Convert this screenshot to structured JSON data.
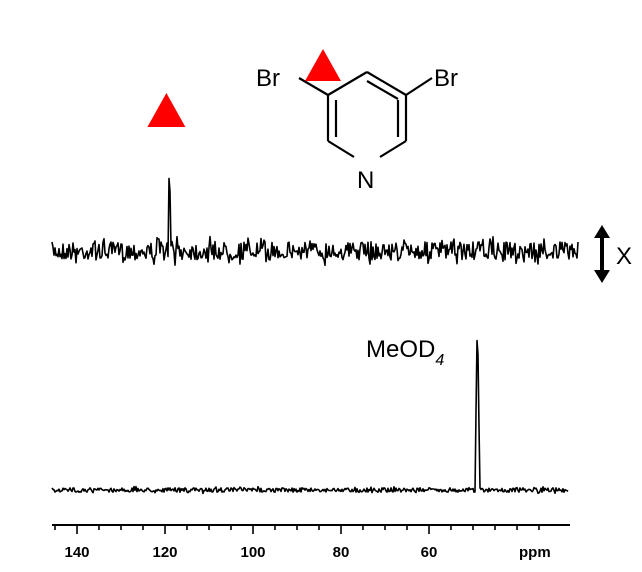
{
  "chart_data": {
    "type": "line",
    "xlabel": "ppm",
    "x_axis": {
      "range": [
        148,
        31
      ],
      "reversed": true,
      "ticks": [
        140,
        120,
        100,
        80,
        60
      ],
      "tick_labels": [
        "140",
        "120",
        "100",
        "80",
        "60"
      ]
    },
    "series": [
      {
        "peaks": [
          {
            "x": 119.0,
            "height": 1.0,
            "marker": "red-triangle"
          }
        ],
        "noise": "high"
      },
      {
        "peaks": [
          {
            "x": 49.0,
            "height": 1.0,
            "label": "MeOD",
            "label_subscript": "4"
          }
        ],
        "noise": "low"
      }
    ],
    "scale_bar_label": "X",
    "molecule": {
      "name": "3,5-dibromopyridine",
      "atom_labels": [
        "Br",
        "Br",
        "N"
      ],
      "marked_position": "C3 (red-triangle)"
    },
    "marker_color": "#ff0000",
    "line_color": "#000000",
    "grid": false,
    "legend": "none"
  }
}
